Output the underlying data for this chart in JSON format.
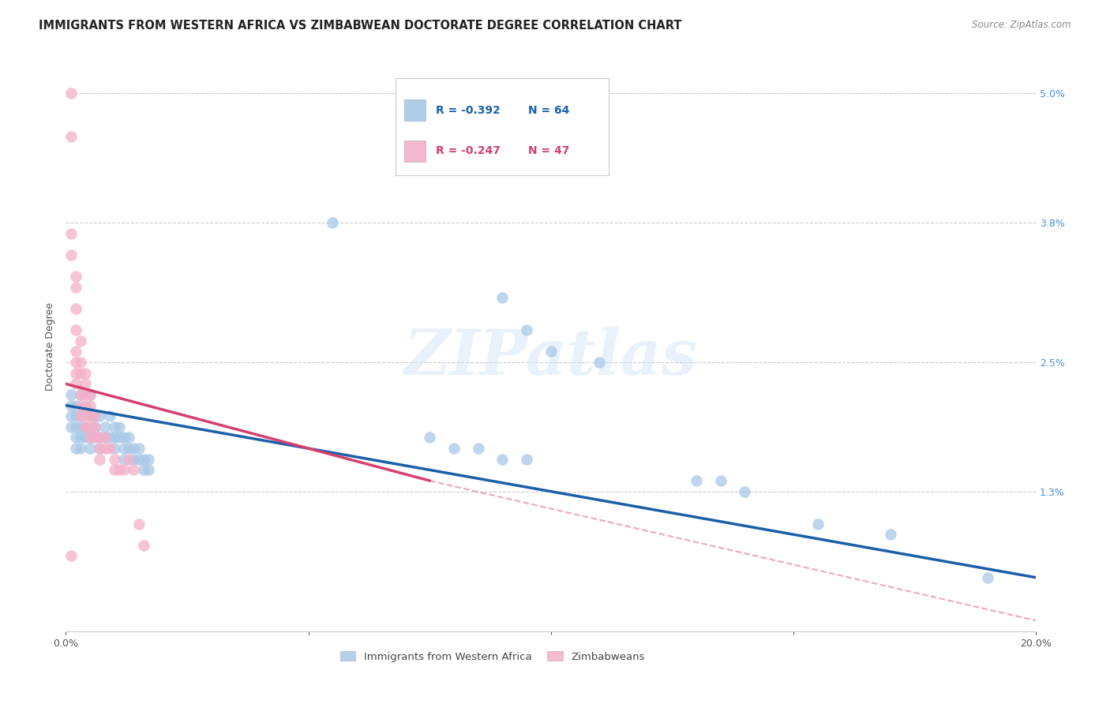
{
  "title": "IMMIGRANTS FROM WESTERN AFRICA VS ZIMBABWEAN DOCTORATE DEGREE CORRELATION CHART",
  "source": "Source: ZipAtlas.com",
  "ylabel": "Doctorate Degree",
  "xlim": [
    0.0,
    0.2
  ],
  "ylim": [
    0.0,
    0.053
  ],
  "legend_r_blue": "-0.392",
  "legend_n_blue": "64",
  "legend_r_pink": "-0.247",
  "legend_n_pink": "47",
  "legend_label_blue": "Immigrants from Western Africa",
  "legend_label_pink": "Zimbabweans",
  "watermark": "ZIPatlas",
  "blue_scatter": [
    [
      0.001,
      0.022
    ],
    [
      0.001,
      0.021
    ],
    [
      0.001,
      0.02
    ],
    [
      0.001,
      0.019
    ],
    [
      0.002,
      0.021
    ],
    [
      0.002,
      0.02
    ],
    [
      0.002,
      0.019
    ],
    [
      0.002,
      0.018
    ],
    [
      0.002,
      0.017
    ],
    [
      0.003,
      0.022
    ],
    [
      0.003,
      0.02
    ],
    [
      0.003,
      0.019
    ],
    [
      0.003,
      0.018
    ],
    [
      0.003,
      0.017
    ],
    [
      0.004,
      0.019
    ],
    [
      0.004,
      0.018
    ],
    [
      0.005,
      0.022
    ],
    [
      0.005,
      0.02
    ],
    [
      0.005,
      0.018
    ],
    [
      0.005,
      0.017
    ],
    [
      0.006,
      0.02
    ],
    [
      0.006,
      0.019
    ],
    [
      0.006,
      0.018
    ],
    [
      0.007,
      0.02
    ],
    [
      0.007,
      0.018
    ],
    [
      0.007,
      0.017
    ],
    [
      0.008,
      0.019
    ],
    [
      0.008,
      0.018
    ],
    [
      0.009,
      0.02
    ],
    [
      0.009,
      0.018
    ],
    [
      0.01,
      0.019
    ],
    [
      0.01,
      0.018
    ],
    [
      0.01,
      0.017
    ],
    [
      0.011,
      0.019
    ],
    [
      0.011,
      0.018
    ],
    [
      0.012,
      0.018
    ],
    [
      0.012,
      0.017
    ],
    [
      0.012,
      0.016
    ],
    [
      0.013,
      0.018
    ],
    [
      0.013,
      0.017
    ],
    [
      0.014,
      0.017
    ],
    [
      0.014,
      0.016
    ],
    [
      0.015,
      0.017
    ],
    [
      0.015,
      0.016
    ],
    [
      0.016,
      0.016
    ],
    [
      0.016,
      0.015
    ],
    [
      0.017,
      0.016
    ],
    [
      0.017,
      0.015
    ],
    [
      0.055,
      0.038
    ],
    [
      0.09,
      0.031
    ],
    [
      0.095,
      0.028
    ],
    [
      0.1,
      0.026
    ],
    [
      0.11,
      0.025
    ],
    [
      0.075,
      0.018
    ],
    [
      0.08,
      0.017
    ],
    [
      0.085,
      0.017
    ],
    [
      0.09,
      0.016
    ],
    [
      0.095,
      0.016
    ],
    [
      0.13,
      0.014
    ],
    [
      0.135,
      0.014
    ],
    [
      0.14,
      0.013
    ],
    [
      0.155,
      0.01
    ],
    [
      0.17,
      0.009
    ],
    [
      0.19,
      0.005
    ]
  ],
  "pink_scatter": [
    [
      0.001,
      0.05
    ],
    [
      0.001,
      0.046
    ],
    [
      0.001,
      0.037
    ],
    [
      0.001,
      0.035
    ],
    [
      0.002,
      0.033
    ],
    [
      0.002,
      0.032
    ],
    [
      0.002,
      0.03
    ],
    [
      0.002,
      0.028
    ],
    [
      0.002,
      0.026
    ],
    [
      0.002,
      0.025
    ],
    [
      0.002,
      0.024
    ],
    [
      0.002,
      0.023
    ],
    [
      0.003,
      0.027
    ],
    [
      0.003,
      0.025
    ],
    [
      0.003,
      0.024
    ],
    [
      0.003,
      0.022
    ],
    [
      0.003,
      0.021
    ],
    [
      0.003,
      0.02
    ],
    [
      0.004,
      0.024
    ],
    [
      0.004,
      0.023
    ],
    [
      0.004,
      0.022
    ],
    [
      0.004,
      0.021
    ],
    [
      0.004,
      0.02
    ],
    [
      0.004,
      0.019
    ],
    [
      0.005,
      0.022
    ],
    [
      0.005,
      0.021
    ],
    [
      0.005,
      0.02
    ],
    [
      0.005,
      0.019
    ],
    [
      0.005,
      0.018
    ],
    [
      0.006,
      0.02
    ],
    [
      0.006,
      0.019
    ],
    [
      0.006,
      0.018
    ],
    [
      0.007,
      0.018
    ],
    [
      0.007,
      0.017
    ],
    [
      0.007,
      0.016
    ],
    [
      0.008,
      0.018
    ],
    [
      0.008,
      0.017
    ],
    [
      0.009,
      0.017
    ],
    [
      0.01,
      0.016
    ],
    [
      0.01,
      0.015
    ],
    [
      0.011,
      0.015
    ],
    [
      0.012,
      0.015
    ],
    [
      0.013,
      0.016
    ],
    [
      0.014,
      0.015
    ],
    [
      0.015,
      0.01
    ],
    [
      0.016,
      0.008
    ],
    [
      0.001,
      0.007
    ]
  ],
  "blue_line": [
    [
      0.0,
      0.021
    ],
    [
      0.2,
      0.005
    ]
  ],
  "pink_line_solid": [
    [
      0.0,
      0.023
    ],
    [
      0.075,
      0.014
    ]
  ],
  "pink_line_dash": [
    [
      0.075,
      0.014
    ],
    [
      0.2,
      0.001
    ]
  ],
  "blue_color": "#a8c8e8",
  "pink_color": "#f4b0c8",
  "blue_line_color": "#1a5fa8",
  "pink_line_color": "#d44070",
  "grid_color": "#cccccc",
  "right_ytick_color": "#4a90d9",
  "ytick_vals": [
    0.0,
    0.013,
    0.025,
    0.038,
    0.05
  ],
  "ytick_labels": [
    "",
    "1.3%",
    "2.5%",
    "3.8%",
    "5.0%"
  ],
  "xtick_vals": [
    0.0,
    0.05,
    0.1,
    0.15,
    0.2
  ],
  "xtick_labels": [
    "0.0%",
    "",
    "",
    "",
    "20.0%"
  ]
}
